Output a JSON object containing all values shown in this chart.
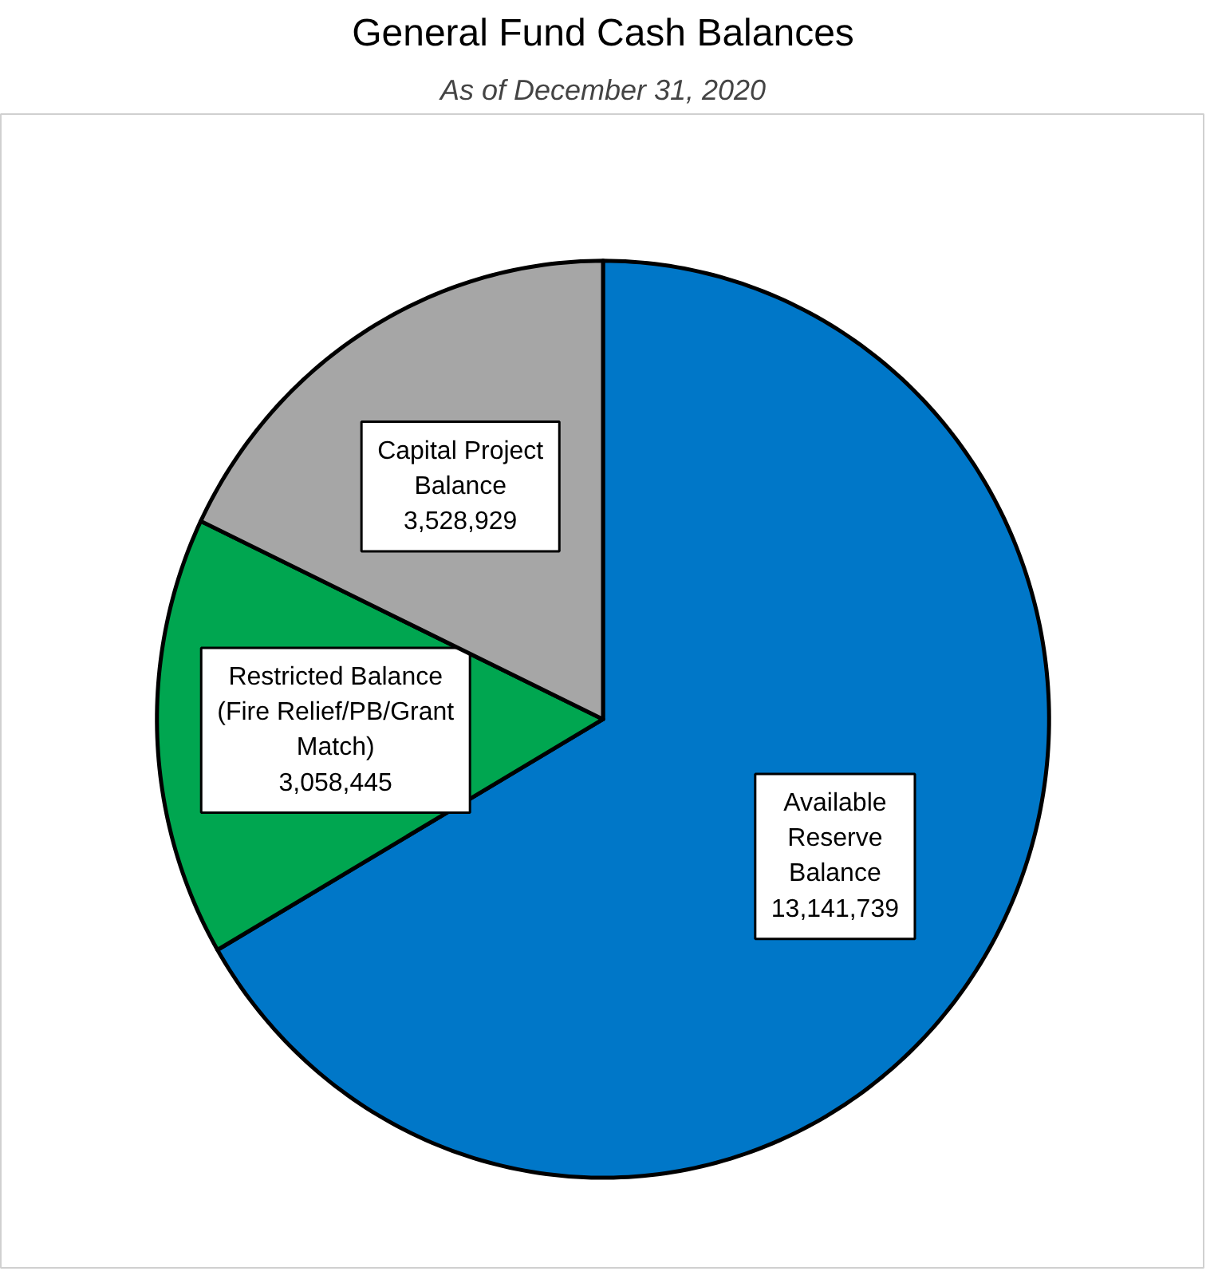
{
  "chart_data": {
    "type": "pie",
    "title": "General Fund Cash Balances",
    "subtitle": "As of December 31, 2020",
    "categories": [
      "Available\nReserve\nBalance",
      "Restricted Balance\n(Fire Relief/PB/Grant\nMatch)",
      "Capital Project\nBalance"
    ],
    "values": [
      13141739,
      3058445,
      3528929
    ],
    "colors": [
      "#0077c8",
      "#00a650",
      "#a6a6a6"
    ],
    "value_labels": [
      "13,141,739",
      "3,058,445",
      "3,528,929"
    ]
  }
}
